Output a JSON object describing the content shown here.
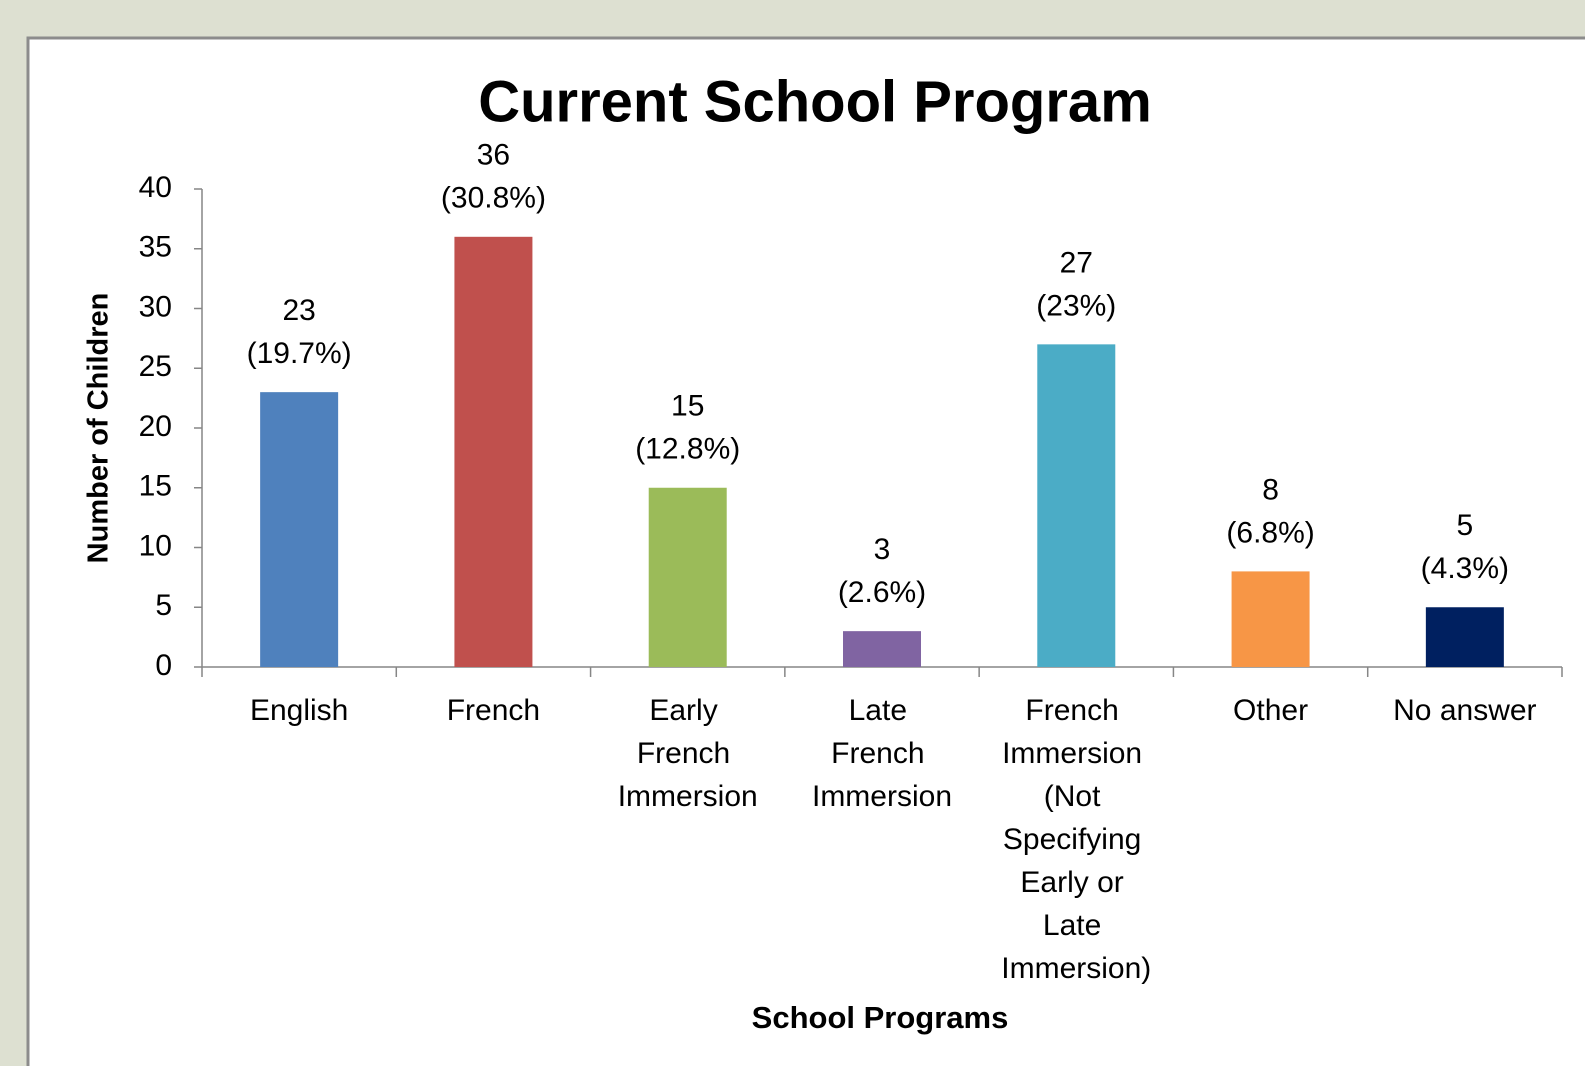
{
  "chart_data": {
    "type": "bar",
    "title": "Current School Program",
    "x_label": "School Programs",
    "y_label": "Number of Children",
    "categories": [
      "English",
      "French",
      "Early French Immersion",
      "Late French Immersion",
      "French Immersion (Not Specifying Early or Late Immersion)",
      "Other",
      "No answer"
    ],
    "values": [
      23,
      36,
      15,
      3,
      27,
      8,
      5
    ],
    "value_labels": [
      [
        "23",
        "(19.7%)"
      ],
      [
        "36",
        "(30.8%)"
      ],
      [
        "15",
        "(12.8%)"
      ],
      [
        "3",
        "(2.6%)"
      ],
      [
        "27",
        "(23%)"
      ],
      [
        "8",
        "(6.8%)"
      ],
      [
        "5",
        "(4.3%)"
      ]
    ],
    "colors": [
      "#4f81bd",
      "#c0504d",
      "#9bbb59",
      "#8064a2",
      "#4bacc6",
      "#f79646",
      "#002060"
    ],
    "ylim": [
      0,
      40
    ],
    "yticks": [
      0,
      5,
      10,
      15,
      20,
      25,
      30,
      35,
      40
    ],
    "grid": false
  }
}
